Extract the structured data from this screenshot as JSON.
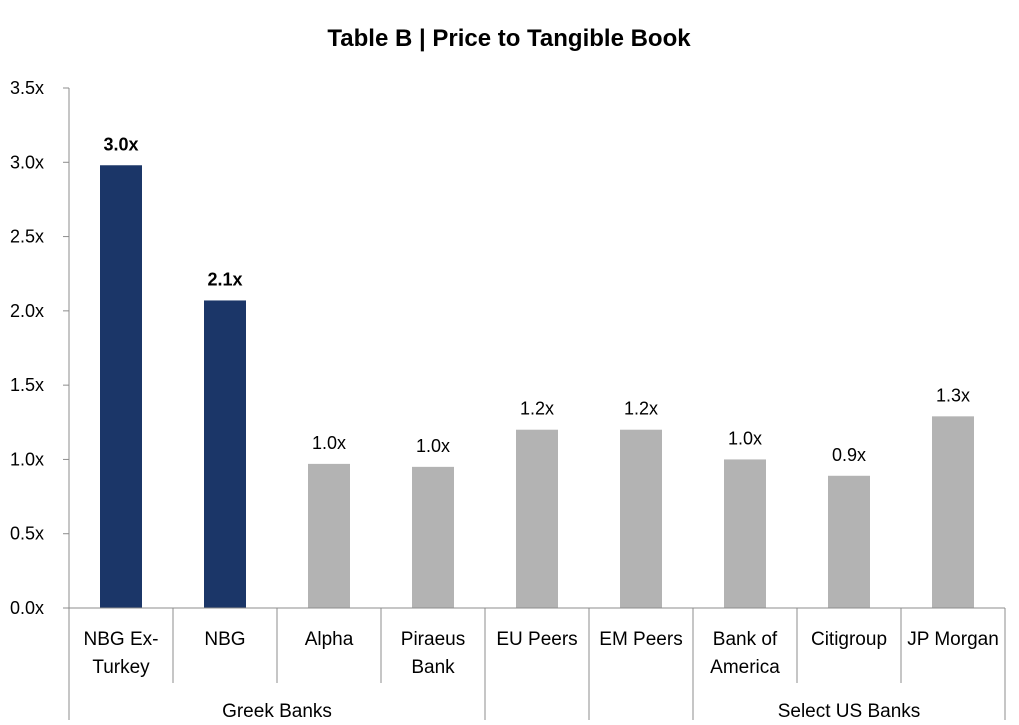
{
  "chart_data": {
    "type": "bar",
    "title": "Table B | Price to Tangible Book",
    "xlabel": "",
    "ylabel": "",
    "ylim": [
      0,
      3.5
    ],
    "y_ticks": [
      "0.0x",
      "0.5x",
      "1.0x",
      "1.5x",
      "2.0x",
      "2.5x",
      "3.0x",
      "3.5x"
    ],
    "y_tick_values": [
      0,
      0.5,
      1.0,
      1.5,
      2.0,
      2.5,
      3.0,
      3.5
    ],
    "grid": false,
    "categories": [
      [
        "NBG Ex-",
        "Turkey"
      ],
      [
        "NBG"
      ],
      [
        "Alpha"
      ],
      [
        "Piraeus",
        "Bank"
      ],
      [
        "EU Peers"
      ],
      [
        "EM Peers"
      ],
      [
        "Bank of",
        "America"
      ],
      [
        "Citigroup"
      ],
      [
        "JP Morgan"
      ]
    ],
    "values": [
      2.98,
      2.07,
      0.97,
      0.95,
      1.2,
      1.2,
      1.0,
      0.89,
      1.29
    ],
    "data_labels": [
      "3.0x",
      "2.1x",
      "1.0x",
      "1.0x",
      "1.2x",
      "1.2x",
      "1.0x",
      "0.9x",
      "1.3x"
    ],
    "highlight": [
      true,
      true,
      false,
      false,
      false,
      false,
      false,
      false,
      false
    ],
    "colors": {
      "highlight": "#1b3668",
      "default": "#b3b3b3",
      "axis": "#8c8c8c"
    },
    "groups": [
      {
        "label": "Greek Banks",
        "start": 0,
        "end": 3
      },
      {
        "label": "",
        "start": 4,
        "end": 4
      },
      {
        "label": "",
        "start": 5,
        "end": 5
      },
      {
        "label": "Select US Banks",
        "start": 6,
        "end": 8
      }
    ]
  }
}
